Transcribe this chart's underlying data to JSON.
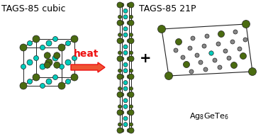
{
  "bg_color": "#ffffff",
  "title_left": "TAGS-85 cubic",
  "title_right": "TAGS-85 21P",
  "arrow_label": "heat",
  "arrow_color": "#ee1111",
  "arrow_fill": "#ee5533",
  "dark_green": "#4a6b10",
  "cyan": "#00ccbb",
  "gray": "#888888",
  "edge_color": "#222222",
  "font_size_title": 9,
  "font_size_label": 8,
  "font_size_arrow": 10,
  "fig_w": 3.78,
  "fig_h": 1.89,
  "dpi": 100
}
